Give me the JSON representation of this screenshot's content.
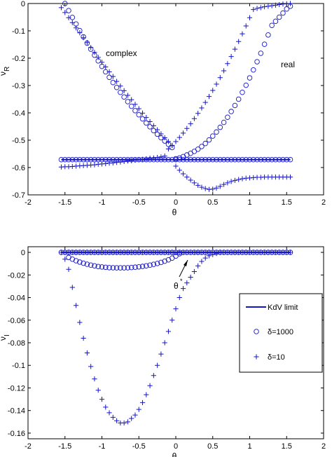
{
  "chart_data": [
    {
      "type": "scatter",
      "title": "",
      "xlabel": "θ",
      "ylabel_main": "ν",
      "ylabel_sub": "R",
      "xlim": [
        -2,
        2
      ],
      "ylim": [
        -0.7,
        0
      ],
      "xticks": [
        "-2",
        "-1.5",
        "-1",
        "-0.5",
        "0",
        "0.5",
        "1",
        "1.5",
        "2"
      ],
      "yticks": [
        "0",
        "-0.1",
        "-0.2",
        "-0.3",
        "-0.4",
        "-0.5",
        "-0.6",
        "-0.7"
      ],
      "annotations": [
        "complex",
        "real"
      ],
      "series": [
        {
          "marker": "line",
          "x": [
            -1.55,
            1.55
          ],
          "y": [
            -0.571,
            -0.571
          ]
        },
        {
          "marker": "circle",
          "x": [
            -1.55,
            -1.5,
            -1.45,
            -1.4,
            -1.35,
            -1.3,
            -1.25,
            -1.2,
            -1.15,
            -1.1,
            -1.05,
            -1.0,
            -0.95,
            -0.9,
            -0.85,
            -0.8,
            -0.75,
            -0.7,
            -0.65,
            -0.6,
            -0.55,
            -0.5,
            -0.45,
            -0.4,
            -0.35,
            -0.3,
            -0.25,
            -0.2,
            -0.15,
            -0.1,
            -0.05,
            0.0,
            0.05,
            0.1,
            0.15,
            0.2,
            0.25,
            0.3,
            0.35,
            0.4,
            0.45,
            0.5,
            0.55,
            0.6,
            0.65,
            0.7,
            0.75,
            0.8,
            0.85,
            0.9,
            0.95,
            1.0,
            1.05,
            1.1,
            1.15,
            1.2,
            1.25,
            1.3,
            1.35,
            1.4,
            1.45,
            1.5,
            1.55
          ],
          "y": [
            -0.571,
            -0.571,
            -0.571,
            -0.571,
            -0.571,
            -0.571,
            -0.571,
            -0.571,
            -0.571,
            -0.571,
            -0.571,
            -0.571,
            -0.571,
            -0.571,
            -0.571,
            -0.571,
            -0.571,
            -0.571,
            -0.571,
            -0.571,
            -0.571,
            -0.571,
            -0.571,
            -0.571,
            -0.571,
            -0.571,
            -0.571,
            -0.571,
            -0.571,
            -0.571,
            -0.571,
            -0.571,
            -0.571,
            -0.571,
            -0.571,
            -0.571,
            -0.571,
            -0.571,
            -0.571,
            -0.571,
            -0.571,
            -0.571,
            -0.571,
            -0.571,
            -0.571,
            -0.571,
            -0.571,
            -0.571,
            -0.571,
            -0.571,
            -0.571,
            -0.571,
            -0.571,
            -0.571,
            -0.571,
            -0.571,
            -0.571,
            -0.571,
            -0.571,
            -0.571,
            -0.571,
            -0.571,
            -0.571
          ]
        },
        {
          "marker": "circle",
          "x": [
            -1.5,
            -1.45,
            -1.4,
            -1.35,
            -1.3,
            -1.25,
            -1.2,
            -1.15,
            -1.1,
            -1.05,
            -1.0,
            -0.95,
            -0.9,
            -0.85,
            -0.8,
            -0.75,
            -0.7,
            -0.65,
            -0.6,
            -0.55,
            -0.5,
            -0.45,
            -0.4,
            -0.35,
            -0.3,
            -0.25,
            -0.2,
            -0.15,
            -0.1,
            -0.05,
            0.0,
            0.05,
            0.1,
            0.15,
            0.2,
            0.25,
            0.3,
            0.35,
            0.4,
            0.45,
            0.5,
            0.55,
            0.6,
            0.65,
            0.7,
            0.75,
            0.8,
            0.85,
            0.9,
            0.95,
            1.0,
            1.05,
            1.1,
            1.15,
            1.2,
            1.25,
            1.3,
            1.35,
            1.4,
            1.45,
            1.5,
            1.55
          ],
          "y": [
            0.0,
            -0.026,
            -0.051,
            -0.075,
            -0.099,
            -0.122,
            -0.145,
            -0.167,
            -0.189,
            -0.21,
            -0.23,
            -0.25,
            -0.27,
            -0.289,
            -0.307,
            -0.325,
            -0.342,
            -0.359,
            -0.376,
            -0.392,
            -0.407,
            -0.422,
            -0.437,
            -0.451,
            -0.465,
            -0.478,
            -0.491,
            -0.503,
            -0.515,
            -0.527,
            -0.568,
            -0.565,
            -0.56,
            -0.554,
            -0.548,
            -0.541,
            -0.533,
            -0.523,
            -0.512,
            -0.499,
            -0.485,
            -0.47,
            -0.453,
            -0.435,
            -0.416,
            -0.395,
            -0.373,
            -0.35,
            -0.325,
            -0.299,
            -0.272,
            -0.243,
            -0.213,
            -0.182,
            -0.149,
            -0.115,
            -0.08,
            -0.065,
            -0.05,
            -0.035,
            -0.02,
            -0.01
          ]
        },
        {
          "marker": "plus",
          "x": [
            -1.55,
            -1.5,
            -1.45,
            -1.4,
            -1.35,
            -1.3,
            -1.25,
            -1.2,
            -1.15,
            -1.1,
            -1.05,
            -1.0,
            -0.95,
            -0.9,
            -0.85,
            -0.8,
            -0.75,
            -0.7,
            -0.65,
            -0.6,
            -0.55,
            -0.5,
            -0.45,
            -0.4,
            -0.35,
            -0.3,
            -0.25,
            -0.2,
            -0.15,
            -0.1,
            -0.05,
            0.0,
            0.05,
            0.1,
            0.15,
            0.2,
            0.25,
            0.3,
            0.35,
            0.4,
            0.45,
            0.5,
            0.55,
            0.6,
            0.65,
            0.7,
            0.75,
            0.8,
            0.85,
            0.9,
            0.95,
            1.0,
            1.05,
            1.1,
            1.15,
            1.2,
            1.25,
            1.3,
            1.35,
            1.4,
            1.45,
            1.5,
            1.55
          ],
          "y": [
            -0.598,
            -0.597,
            -0.597,
            -0.596,
            -0.595,
            -0.594,
            -0.593,
            -0.592,
            -0.591,
            -0.59,
            -0.588,
            -0.587,
            -0.586,
            -0.584,
            -0.583,
            -0.581,
            -0.58,
            -0.578,
            -0.576,
            -0.575,
            -0.573,
            -0.571,
            -0.57,
            -0.568,
            -0.566,
            -0.565,
            -0.563,
            -0.561,
            -0.558,
            -0.532,
            -0.52,
            -0.505,
            -0.49,
            -0.474,
            -0.457,
            -0.44,
            -0.421,
            -0.402,
            -0.382,
            -0.362,
            -0.34,
            -0.318,
            -0.295,
            -0.271,
            -0.246,
            -0.22,
            -0.194,
            -0.167,
            -0.139,
            -0.111,
            -0.082,
            -0.052,
            -0.022,
            -0.018,
            -0.015,
            -0.012,
            -0.01,
            -0.008,
            -0.006,
            -0.004,
            -0.002,
            -0.001,
            0.0
          ]
        },
        {
          "marker": "plus",
          "x": [
            -1.55,
            -1.5,
            -1.45,
            -1.4,
            -1.35,
            -1.3,
            -1.25,
            -1.2,
            -1.15,
            -1.1,
            -1.05,
            -1.0,
            -0.95,
            -0.9,
            -0.85,
            -0.8,
            -0.75,
            -0.7,
            -0.65,
            -0.6,
            -0.55,
            -0.5,
            -0.45,
            -0.4,
            -0.35,
            -0.3,
            -0.25,
            -0.2,
            -0.15,
            -0.1,
            -0.05,
            0.0,
            0.05,
            0.1,
            0.15,
            0.2,
            0.25,
            0.3,
            0.35,
            0.4,
            0.45,
            0.5,
            0.55,
            0.6,
            0.65,
            0.7,
            0.75,
            0.8,
            0.85,
            0.9,
            0.95,
            1.0,
            1.05,
            1.1,
            1.15,
            1.2,
            1.25,
            1.3,
            1.35,
            1.4,
            1.45,
            1.5,
            1.55
          ],
          "y": [
            -0.015,
            -0.033,
            -0.052,
            -0.07,
            -0.089,
            -0.107,
            -0.125,
            -0.143,
            -0.161,
            -0.179,
            -0.197,
            -0.215,
            -0.232,
            -0.25,
            -0.267,
            -0.285,
            -0.302,
            -0.319,
            -0.336,
            -0.352,
            -0.369,
            -0.385,
            -0.401,
            -0.417,
            -0.432,
            -0.447,
            -0.462,
            -0.477,
            -0.491,
            -0.505,
            -0.519,
            -0.595,
            -0.61,
            -0.623,
            -0.635,
            -0.646,
            -0.656,
            -0.665,
            -0.672,
            -0.677,
            -0.68,
            -0.679,
            -0.675,
            -0.669,
            -0.662,
            -0.656,
            -0.651,
            -0.647,
            -0.644,
            -0.641,
            -0.639,
            -0.638,
            -0.637,
            -0.636,
            -0.636,
            -0.635,
            -0.635,
            -0.635,
            -0.635,
            -0.635,
            -0.635,
            -0.635,
            -0.635
          ]
        }
      ]
    },
    {
      "type": "scatter",
      "title": "",
      "xlabel": "θ",
      "ylabel_main": "ν",
      "ylabel_sub": "I",
      "xlim": [
        -2,
        2
      ],
      "ylim": [
        -0.165,
        0.005
      ],
      "xticks": [
        "-2",
        "-1.5",
        "-1",
        "-0.5",
        "0",
        "0.5",
        "1",
        "1.5",
        "2"
      ],
      "yticks": [
        "0",
        "-0.02",
        "-0.04",
        "-0.06",
        "-0.08",
        "-0.1",
        "-0.12",
        "-0.14",
        "-0.16"
      ],
      "annotation": {
        "main": "θ",
        "sup": "*"
      },
      "legend": {
        "placement": "right",
        "items": [
          {
            "marker": "line",
            "label": "KdV limit"
          },
          {
            "marker": "circle",
            "label": "δ=1000"
          },
          {
            "marker": "plus",
            "label": "δ=10"
          }
        ]
      },
      "series": [
        {
          "name": "KdV limit",
          "marker": "line",
          "x": [
            -1.55,
            1.55
          ],
          "y": [
            0.0,
            0.0
          ]
        },
        {
          "name": "δ=1000",
          "marker": "circle",
          "x": [
            -1.55,
            -1.5,
            -1.45,
            -1.4,
            -1.35,
            -1.3,
            -1.25,
            -1.2,
            -1.15,
            -1.1,
            -1.05,
            -1.0,
            -0.95,
            -0.9,
            -0.85,
            -0.8,
            -0.75,
            -0.7,
            -0.65,
            -0.6,
            -0.55,
            -0.5,
            -0.45,
            -0.4,
            -0.35,
            -0.3,
            -0.25,
            -0.2,
            -0.15,
            -0.1,
            -0.05,
            0.0,
            0.05,
            0.1,
            0.15,
            0.2,
            0.25,
            0.3,
            0.35,
            0.4,
            0.45,
            0.5,
            0.55,
            0.6,
            0.65,
            0.7,
            0.75,
            0.8,
            0.85,
            0.9,
            0.95,
            1.0,
            1.05,
            1.1,
            1.15,
            1.2,
            1.25,
            1.3,
            1.35,
            1.4,
            1.45,
            1.5,
            1.55
          ],
          "y": [
            -0.0,
            -0.0,
            -0.0,
            -0.0,
            -0.0,
            -0.0,
            -0.0,
            -0.0,
            -0.0,
            -0.0,
            -0.0,
            -0.0,
            -0.0,
            -0.0,
            -0.0,
            -0.0,
            -0.0,
            -0.0,
            -0.0,
            -0.0,
            -0.0,
            -0.0,
            -0.0,
            -0.0,
            -0.0,
            -0.0,
            -0.0,
            -0.0,
            -0.0,
            -0.0,
            -0.0,
            -0.0,
            -0.0,
            -0.0,
            -0.0,
            -0.0,
            -0.0,
            -0.0,
            -0.0,
            -0.0,
            -0.0,
            -0.0,
            -0.0,
            -0.0,
            -0.0,
            -0.0,
            -0.0,
            -0.0,
            -0.0,
            -0.0,
            -0.0,
            -0.0,
            -0.0,
            -0.0,
            -0.0,
            -0.0,
            -0.0,
            -0.0,
            -0.0,
            -0.0,
            -0.0,
            -0.0,
            -0.0
          ]
        },
        {
          "name": "δ=1000",
          "marker": "circle",
          "x": [
            -1.45,
            -1.4,
            -1.35,
            -1.3,
            -1.25,
            -1.2,
            -1.15,
            -1.1,
            -1.05,
            -1.0,
            -0.95,
            -0.9,
            -0.85,
            -0.8,
            -0.75,
            -0.7,
            -0.65,
            -0.6,
            -0.55,
            -0.5,
            -0.45,
            -0.4,
            -0.35,
            -0.3,
            -0.25,
            -0.2,
            -0.15,
            -0.1,
            -0.05,
            0.0,
            0.05
          ],
          "y": [
            -0.0045,
            -0.006,
            -0.0074,
            -0.0086,
            -0.0096,
            -0.0105,
            -0.0113,
            -0.0119,
            -0.0125,
            -0.0129,
            -0.0132,
            -0.0135,
            -0.0136,
            -0.0137,
            -0.0137,
            -0.0137,
            -0.0136,
            -0.0134,
            -0.0131,
            -0.0128,
            -0.0124,
            -0.0119,
            -0.0113,
            -0.0106,
            -0.0098,
            -0.0089,
            -0.0078,
            -0.0066,
            -0.0051,
            -0.0033,
            -0.0012
          ]
        },
        {
          "name": "δ=10",
          "marker": "plus",
          "x": [
            -1.55,
            -1.5,
            -1.45,
            -1.4,
            -1.35,
            -1.3,
            -1.25,
            -1.2,
            -1.15,
            -1.1,
            -1.05,
            -1.0,
            -0.95,
            -0.9,
            -0.85,
            -0.8,
            -0.75,
            -0.7,
            -0.65,
            -0.6,
            -0.55,
            -0.5,
            -0.45,
            -0.4,
            -0.35,
            -0.3,
            -0.25,
            -0.2,
            -0.15,
            -0.1,
            -0.05,
            0.0,
            0.05,
            0.1,
            0.15,
            0.2,
            0.25,
            0.3,
            0.35,
            0.4,
            0.45,
            0.5,
            0.55,
            0.6,
            0.65,
            0.7,
            0.75,
            0.8,
            0.85,
            0.9,
            0.95,
            1.0,
            1.05,
            1.1,
            1.15,
            1.2,
            1.25,
            1.3,
            1.35,
            1.4,
            1.45,
            1.5,
            1.55
          ],
          "y": [
            -0.0,
            -0.0,
            -0.0,
            -0.0,
            -0.0,
            -0.0,
            -0.0,
            -0.0,
            -0.0,
            -0.0,
            -0.0,
            -0.0,
            -0.0,
            -0.0,
            -0.0,
            -0.0,
            -0.0,
            -0.0,
            -0.0,
            -0.0,
            -0.0,
            -0.0,
            -0.0,
            -0.0,
            -0.0,
            -0.0,
            -0.0,
            -0.0,
            -0.0,
            -0.0,
            -0.0,
            -0.0,
            -0.0,
            -0.0,
            -0.0,
            -0.0,
            -0.0,
            -0.0,
            -0.0,
            -0.0,
            -0.0,
            -0.0,
            -0.0,
            -0.0,
            -0.0,
            -0.0,
            -0.0,
            -0.0,
            -0.0,
            -0.0,
            -0.0,
            -0.0,
            -0.0,
            -0.0,
            -0.0,
            -0.0,
            -0.0,
            -0.0,
            -0.0,
            -0.0,
            -0.0,
            -0.0,
            -0.0
          ]
        },
        {
          "name": "δ=10",
          "marker": "plus",
          "x": [
            -1.5,
            -1.45,
            -1.4,
            -1.35,
            -1.3,
            -1.25,
            -1.2,
            -1.15,
            -1.1,
            -1.05,
            -1.0,
            -0.95,
            -0.9,
            -0.85,
            -0.8,
            -0.75,
            -0.7,
            -0.65,
            -0.6,
            -0.55,
            -0.5,
            -0.45,
            -0.4,
            -0.35,
            -0.3,
            -0.25,
            -0.2,
            -0.15,
            -0.1,
            -0.05,
            0.0,
            0.05,
            0.1,
            0.15,
            0.2,
            0.25,
            0.3,
            0.35,
            0.4,
            0.45,
            0.5,
            0.55,
            0.6
          ],
          "y": [
            -0.006,
            -0.015,
            -0.031,
            -0.047,
            -0.062,
            -0.076,
            -0.089,
            -0.101,
            -0.112,
            -0.122,
            -0.13,
            -0.137,
            -0.142,
            -0.146,
            -0.149,
            -0.151,
            -0.151,
            -0.15,
            -0.147,
            -0.144,
            -0.139,
            -0.133,
            -0.126,
            -0.118,
            -0.109,
            -0.1,
            -0.09,
            -0.08,
            -0.07,
            -0.06,
            -0.05,
            -0.04,
            -0.032,
            -0.027,
            -0.022,
            -0.017,
            -0.012,
            -0.008,
            -0.005,
            -0.003,
            -0.002,
            -0.001,
            -0.0
          ]
        }
      ]
    }
  ]
}
